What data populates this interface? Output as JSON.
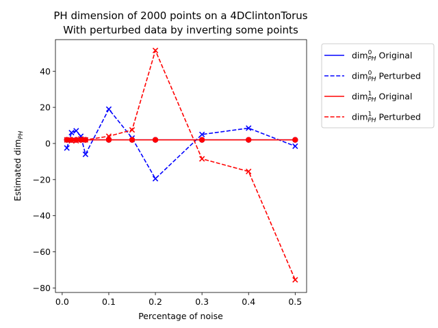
{
  "chart_data": {
    "type": "line",
    "title": "PH dimension of 2000 points on a 4DClintonTorus",
    "subtitle": "With perturbed data by inverting some points",
    "xlabel": "Percentage of noise",
    "ylabel_main": "Estimated dim",
    "ylabel_sub": "PH",
    "xlim": [
      -0.0145,
      0.5245
    ],
    "ylim": [
      -82.5,
      57.5
    ],
    "x_ticks": [
      0.0,
      0.1,
      0.2,
      0.3,
      0.4,
      0.5
    ],
    "x_tick_labels": [
      "0.0",
      "0.1",
      "0.2",
      "0.3",
      "0.4",
      "0.5"
    ],
    "y_ticks": [
      40,
      20,
      0,
      -20,
      -40,
      -60,
      -80
    ],
    "y_tick_labels": [
      "40",
      "20",
      "0",
      "−20",
      "−40",
      "−60",
      "−80"
    ],
    "grid": false,
    "legend_position": "outside upper right",
    "x": [
      0.01,
      0.02,
      0.03,
      0.04,
      0.05,
      0.1,
      0.15,
      0.2,
      0.3,
      0.4,
      0.5
    ],
    "series": [
      {
        "legend_main": "dim",
        "legend_sup": "0",
        "legend_sub": "PH",
        "legend_suffix": " Original",
        "color": "#0000ff",
        "dash": "solid",
        "marker": "o",
        "values": [
          2.0,
          2.0,
          2.0,
          2.0,
          2.0,
          2.0,
          2.0,
          2.0,
          2.0,
          2.0,
          2.0
        ]
      },
      {
        "legend_main": "dim",
        "legend_sup": "0",
        "legend_sub": "PH",
        "legend_suffix": " Perturbed",
        "color": "#0000ff",
        "dash": "dashed",
        "marker": "x",
        "values": [
          -2.5,
          6.0,
          7.0,
          4.0,
          -6.0,
          19.0,
          3.0,
          -19.5,
          5.0,
          8.5,
          -1.5
        ]
      },
      {
        "legend_main": "dim",
        "legend_sup": "1",
        "legend_sub": "PH",
        "legend_suffix": " Original",
        "color": "#ff0000",
        "dash": "solid",
        "marker": "o",
        "values": [
          2.0,
          2.0,
          2.0,
          2.0,
          2.0,
          2.0,
          2.0,
          2.0,
          2.0,
          2.0,
          2.0
        ]
      },
      {
        "legend_main": "dim",
        "legend_sup": "1",
        "legend_sub": "PH",
        "legend_suffix": " Perturbed",
        "color": "#ff0000",
        "dash": "dashed",
        "marker": "x",
        "values": [
          2.0,
          1.5,
          1.5,
          2.5,
          2.0,
          4.0,
          7.5,
          51.5,
          -8.5,
          -15.5,
          -75.5
        ]
      }
    ]
  }
}
